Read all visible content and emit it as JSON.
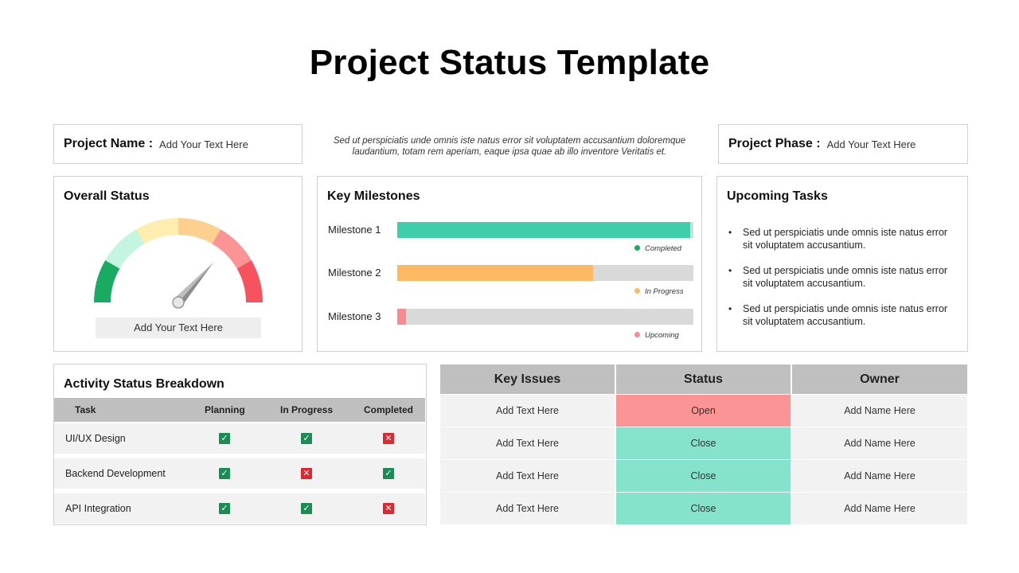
{
  "title": "Project Status Template",
  "project_name": {
    "label": "Project Name :",
    "value": "Add Your Text Here"
  },
  "project_phase": {
    "label": "Project Phase :",
    "value": "Add Your Text Here"
  },
  "intro_text": "Sed ut perspiciatis unde omnis iste natus error sit voluptatem accusantium doloremque laudantium, totam rem aperiam, eaque ipsa quae ab illo inventore Veritatis et.",
  "overall_status": {
    "title": "Overall Status",
    "caption": "Add Your Text Here",
    "gauge_colors": [
      "#1aab62",
      "#c3f5e0",
      "#fdeeb0",
      "#fcd08e",
      "#fb9494",
      "#f7535e"
    ]
  },
  "milestones": {
    "title": "Key Milestones",
    "items": [
      {
        "label": "Milestone 1",
        "progress": 0.99,
        "color": "#3ecfaa",
        "status": "Completed",
        "dot": "#1aab62"
      },
      {
        "label": "Milestone 2",
        "progress": 0.66,
        "color": "#fdb863",
        "status": "In Progress",
        "dot": "#fdb863"
      },
      {
        "label": "Milestone 3",
        "progress": 0.03,
        "color": "#f88a91",
        "status": "Upcoming",
        "dot": "#f88a91"
      }
    ]
  },
  "upcoming_tasks": {
    "title": "Upcoming Tasks",
    "items": [
      "Sed ut perspiciatis unde omnis iste natus error sit voluptatem accusantium.",
      "Sed ut perspiciatis unde omnis iste natus error sit voluptatem accusantium.",
      "Sed ut perspiciatis unde omnis iste natus error sit voluptatem accusantium."
    ]
  },
  "activity": {
    "title": "Activity Status Breakdown",
    "columns": [
      "Task",
      "Planning",
      "In Progress",
      "Completed"
    ],
    "rows": [
      {
        "task": "UI/UX Design",
        "planning": true,
        "in_progress": true,
        "completed": false
      },
      {
        "task": "Backend Development",
        "planning": true,
        "in_progress": false,
        "completed": true
      },
      {
        "task": "API Integration",
        "planning": true,
        "in_progress": true,
        "completed": false
      }
    ]
  },
  "issues": {
    "columns": [
      "Key Issues",
      "Status",
      "Owner"
    ],
    "rows": [
      {
        "issue": "Add Text Here",
        "status": "Open",
        "owner": "Add Name Here"
      },
      {
        "issue": "Add Text Here",
        "status": "Close",
        "owner": "Add Name Here"
      },
      {
        "issue": "Add Text Here",
        "status": "Close",
        "owner": "Add Name Here"
      },
      {
        "issue": "Add Text Here",
        "status": "Close",
        "owner": "Add Name Here"
      }
    ],
    "status_colors": {
      "Open": "#fb9494",
      "Close": "#85e3cc"
    }
  }
}
